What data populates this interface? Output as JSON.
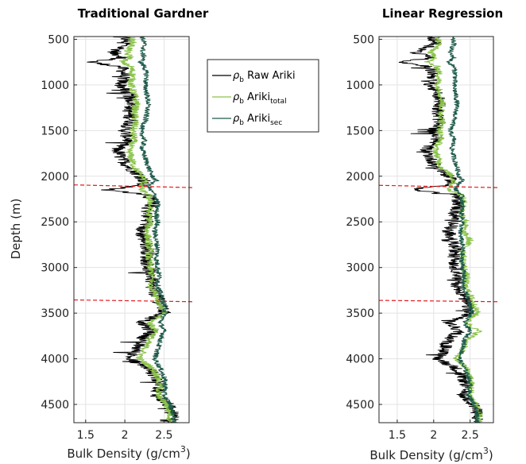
{
  "chart_data": [
    {
      "type": "line",
      "title": "Traditional Gardner",
      "xlabel": "Bulk Density (g/cm",
      "xlabel_sup": "3",
      "xlabel_close": ")",
      "ylabel": "Depth (m)",
      "xlim": [
        1.35,
        2.82
      ],
      "ylim": [
        470,
        4700
      ],
      "y_reversed": true,
      "grid": true,
      "xticks": [
        {
          "value": 1.5,
          "label": "1.5"
        },
        {
          "value": 2.0,
          "label": "2"
        },
        {
          "value": 2.5,
          "label": "2.5"
        }
      ],
      "yticks": [
        {
          "value": 500,
          "label": "500"
        },
        {
          "value": 1000,
          "label": "1000"
        },
        {
          "value": 1500,
          "label": "1500"
        },
        {
          "value": 2000,
          "label": "2000"
        },
        {
          "value": 2500,
          "label": "2500"
        },
        {
          "value": 3000,
          "label": "3000"
        },
        {
          "value": 3500,
          "label": "3500"
        },
        {
          "value": 4000,
          "label": "4000"
        },
        {
          "value": 4500,
          "label": "4500"
        }
      ],
      "boundaries": [
        {
          "depths": [
            2095,
            2125
          ]
        },
        {
          "depths": [
            3355,
            3375
          ]
        }
      ],
      "series": [
        {
          "key": "raw",
          "color": "#000000",
          "depth": [
            470,
            550,
            650,
            700,
            750,
            800,
            900,
            1000,
            1100,
            1200,
            1300,
            1400,
            1500,
            1600,
            1700,
            1800,
            1900,
            2000,
            2050,
            2100,
            2150,
            2200,
            2300,
            2400,
            2500,
            2600,
            2700,
            2800,
            2900,
            3000,
            3100,
            3200,
            3300,
            3400,
            3500,
            3600,
            3700,
            3800,
            3900,
            4000,
            4100,
            4200,
            4300,
            4400,
            4500,
            4600,
            4700
          ],
          "density": [
            2.0,
            2.02,
            1.85,
            2.0,
            1.55,
            1.95,
            2.0,
            1.95,
            2.05,
            2.1,
            2.05,
            2.08,
            2.0,
            2.05,
            1.9,
            1.95,
            2.05,
            2.2,
            2.25,
            2.2,
            1.75,
            2.3,
            2.35,
            2.28,
            2.3,
            2.2,
            2.25,
            2.3,
            2.28,
            2.3,
            2.35,
            2.32,
            2.4,
            2.45,
            2.5,
            2.2,
            2.35,
            2.2,
            2.15,
            2.05,
            2.3,
            2.4,
            2.45,
            2.4,
            2.55,
            2.6,
            2.6
          ]
        },
        {
          "key": "total",
          "color": "#8bc34a",
          "depth": [
            470,
            550,
            650,
            700,
            750,
            800,
            900,
            1000,
            1100,
            1200,
            1300,
            1400,
            1500,
            1600,
            1700,
            1800,
            1900,
            2000,
            2050,
            2100,
            2150,
            2200,
            2300,
            2400,
            2500,
            2600,
            2700,
            2800,
            2900,
            3000,
            3100,
            3200,
            3300,
            3400,
            3500,
            3600,
            3700,
            3800,
            3900,
            4000,
            4100,
            4200,
            4300,
            4400,
            4500,
            4600,
            4700
          ],
          "density": [
            2.08,
            2.1,
            2.02,
            2.08,
            1.95,
            2.08,
            2.1,
            2.08,
            2.12,
            2.15,
            2.12,
            2.14,
            2.1,
            2.12,
            2.05,
            2.08,
            2.12,
            2.22,
            2.25,
            2.22,
            2.2,
            2.3,
            2.33,
            2.3,
            2.32,
            2.28,
            2.3,
            2.32,
            2.3,
            2.32,
            2.35,
            2.33,
            2.4,
            2.45,
            2.5,
            2.32,
            2.4,
            2.3,
            2.25,
            2.18,
            2.35,
            2.42,
            2.45,
            2.42,
            2.53,
            2.58,
            2.58
          ]
        },
        {
          "key": "sec",
          "color": "#1e5a4a",
          "depth": [
            470,
            550,
            650,
            700,
            750,
            800,
            900,
            1000,
            1100,
            1200,
            1300,
            1400,
            1500,
            1600,
            1700,
            1800,
            1900,
            2000,
            2050,
            2100,
            2150,
            2200,
            2300,
            2400,
            2500,
            2600,
            2700,
            2800,
            2900,
            3000,
            3100,
            3200,
            3300,
            3400,
            3500,
            3600,
            3700,
            3800,
            3900,
            4000,
            4100,
            4200,
            4300,
            4400,
            4500,
            4600,
            4700
          ],
          "density": [
            2.22,
            2.25,
            2.22,
            2.25,
            2.2,
            2.25,
            2.28,
            2.26,
            2.28,
            2.3,
            2.28,
            2.26,
            2.2,
            2.25,
            2.22,
            2.26,
            2.3,
            2.35,
            2.4,
            2.3,
            2.32,
            2.38,
            2.42,
            2.4,
            2.42,
            2.38,
            2.4,
            2.42,
            2.4,
            2.42,
            2.44,
            2.42,
            2.46,
            2.5,
            2.52,
            2.45,
            2.5,
            2.45,
            2.42,
            2.38,
            2.45,
            2.5,
            2.52,
            2.5,
            2.58,
            2.62,
            2.62
          ]
        }
      ]
    },
    {
      "type": "line",
      "title": "Linear Regression",
      "xlabel": "Bulk Density (g/cm",
      "xlabel_sup": "3",
      "xlabel_close": ")",
      "ylabel": "",
      "xlim": [
        1.25,
        2.82
      ],
      "ylim": [
        470,
        4700
      ],
      "y_reversed": true,
      "grid": true,
      "xticks": [
        {
          "value": 1.5,
          "label": "1.5"
        },
        {
          "value": 2.0,
          "label": "2"
        },
        {
          "value": 2.5,
          "label": "2.5"
        }
      ],
      "yticks": [
        {
          "value": 500,
          "label": "500"
        },
        {
          "value": 1000,
          "label": "1000"
        },
        {
          "value": 1500,
          "label": "1500"
        },
        {
          "value": 2000,
          "label": "2000"
        },
        {
          "value": 2500,
          "label": "2500"
        },
        {
          "value": 3000,
          "label": "3000"
        },
        {
          "value": 3500,
          "label": "3500"
        },
        {
          "value": 4000,
          "label": "4000"
        },
        {
          "value": 4500,
          "label": "4500"
        }
      ],
      "boundaries": [
        {
          "depths": [
            2100,
            2125
          ]
        },
        {
          "depths": [
            3360,
            3375
          ]
        }
      ],
      "series": [
        {
          "key": "raw",
          "color": "#000000",
          "depth": [
            470,
            550,
            650,
            700,
            750,
            800,
            900,
            1000,
            1100,
            1200,
            1300,
            1400,
            1500,
            1600,
            1700,
            1800,
            1900,
            2000,
            2050,
            2100,
            2150,
            2200,
            2300,
            2400,
            2500,
            2600,
            2700,
            2800,
            2900,
            3000,
            3100,
            3200,
            3300,
            3400,
            3500,
            3600,
            3700,
            3800,
            3900,
            4000,
            4100,
            4200,
            4300,
            4400,
            4500,
            4600,
            4700
          ],
          "density": [
            2.0,
            2.02,
            1.75,
            2.0,
            1.55,
            1.95,
            2.0,
            1.95,
            2.05,
            2.1,
            2.05,
            2.08,
            2.0,
            2.05,
            1.9,
            1.95,
            2.05,
            2.2,
            2.25,
            2.2,
            1.7,
            2.3,
            2.35,
            2.28,
            2.3,
            2.2,
            2.25,
            2.3,
            2.28,
            2.3,
            2.35,
            2.32,
            2.4,
            2.45,
            2.5,
            2.2,
            2.35,
            2.2,
            2.15,
            2.05,
            2.3,
            2.4,
            2.45,
            2.4,
            2.55,
            2.6,
            2.6
          ]
        },
        {
          "key": "total",
          "color": "#8bc34a",
          "depth": [
            470,
            550,
            650,
            700,
            750,
            800,
            900,
            1000,
            1100,
            1200,
            1300,
            1400,
            1500,
            1600,
            1700,
            1800,
            1900,
            2000,
            2050,
            2100,
            2150,
            2200,
            2300,
            2400,
            2500,
            2600,
            2700,
            2800,
            2900,
            3000,
            3100,
            3200,
            3300,
            3400,
            3500,
            3600,
            3700,
            3800,
            3900,
            4000,
            4100,
            4200,
            4300,
            4400,
            4500,
            4600,
            4700
          ],
          "density": [
            2.05,
            2.08,
            1.95,
            2.05,
            1.9,
            2.05,
            2.08,
            2.05,
            2.1,
            2.12,
            2.1,
            2.12,
            2.08,
            2.1,
            2.02,
            2.06,
            2.1,
            2.25,
            2.28,
            2.25,
            2.2,
            2.38,
            2.42,
            2.38,
            2.45,
            2.4,
            2.5,
            2.42,
            2.4,
            2.42,
            2.45,
            2.43,
            2.5,
            2.55,
            2.6,
            2.45,
            2.62,
            2.45,
            2.4,
            2.3,
            2.45,
            2.5,
            2.52,
            2.5,
            2.58,
            2.62,
            2.62
          ]
        },
        {
          "key": "sec",
          "color": "#1e5a4a",
          "depth": [
            470,
            550,
            650,
            700,
            750,
            800,
            900,
            1000,
            1100,
            1200,
            1300,
            1400,
            1500,
            1600,
            1700,
            1800,
            1900,
            2000,
            2050,
            2100,
            2150,
            2200,
            2300,
            2400,
            2500,
            2600,
            2700,
            2800,
            2900,
            3000,
            3100,
            3200,
            3300,
            3400,
            3500,
            3600,
            3700,
            3800,
            3900,
            4000,
            4100,
            4200,
            4300,
            4400,
            4500,
            4600,
            4700
          ],
          "density": [
            2.25,
            2.28,
            2.22,
            2.28,
            2.2,
            2.28,
            2.3,
            2.28,
            2.3,
            2.32,
            2.3,
            2.28,
            2.22,
            2.28,
            2.25,
            2.28,
            2.32,
            2.35,
            2.4,
            2.32,
            2.3,
            2.38,
            2.4,
            2.38,
            2.4,
            2.36,
            2.38,
            2.4,
            2.38,
            2.4,
            2.42,
            2.4,
            2.45,
            2.5,
            2.52,
            2.42,
            2.5,
            2.42,
            2.4,
            2.35,
            2.42,
            2.48,
            2.5,
            2.48,
            2.56,
            2.6,
            2.6
          ]
        }
      ]
    }
  ],
  "legend": {
    "placement": "between-panels-top",
    "entries": [
      {
        "key": "raw",
        "symbol": "ρ",
        "sub1": "b",
        "text": " Raw Ariki",
        "sub2": "",
        "color": "#000000"
      },
      {
        "key": "total",
        "symbol": "ρ",
        "sub1": "b",
        "text": " Ariki",
        "sub2": "total",
        "color": "#8bc34a"
      },
      {
        "key": "sec",
        "symbol": "ρ",
        "sub1": "b",
        "text": " Ariki",
        "sub2": "sec",
        "color": "#1e5a4a"
      }
    ]
  },
  "colors": {
    "boundary": "#e41a1c",
    "grid": "#e3e3e3",
    "axis": "#262626"
  }
}
